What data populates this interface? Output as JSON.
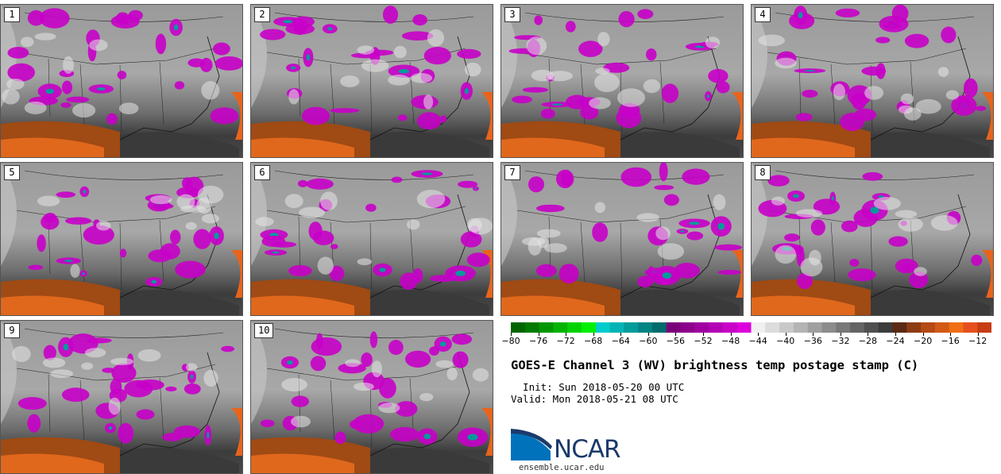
{
  "panels": [
    "1",
    "2",
    "3",
    "4",
    "5",
    "6",
    "7",
    "8",
    "9",
    "10"
  ],
  "colorbar": {
    "colors": [
      "#006400",
      "#007a00",
      "#009600",
      "#00b400",
      "#00d200",
      "#00f000",
      "#00cccc",
      "#00b4b4",
      "#009c9c",
      "#008484",
      "#006c6c",
      "#7a007a",
      "#8c008c",
      "#a000a0",
      "#b400b4",
      "#c800c8",
      "#dc00dc",
      "#f0f0f0",
      "#dcdcdc",
      "#c8c8c8",
      "#b4b4b4",
      "#a0a0a0",
      "#8c8c8c",
      "#787878",
      "#646464",
      "#505050",
      "#3c3c3c",
      "#5a2a14",
      "#8c3c14",
      "#b44a14",
      "#d25a14",
      "#f06e14",
      "#e6501e",
      "#c83c14"
    ],
    "min": -80,
    "max": -10,
    "tick_values": [
      -80,
      -76,
      -72,
      -68,
      -64,
      -60,
      -56,
      -52,
      -48,
      -44,
      -40,
      -36,
      -32,
      -28,
      -24,
      -20,
      -16,
      -12
    ],
    "tick_labels": [
      "−80",
      "−76",
      "−72",
      "−68",
      "−64",
      "−60",
      "−56",
      "−52",
      "−48",
      "−44",
      "−40",
      "−36",
      "−32",
      "−28",
      "−24",
      "−20",
      "−16",
      "−12"
    ]
  },
  "title": "GOES-E Channel 3 (WV) brightness temp postage stamp (C)",
  "init": "  Init: Sun 2018-05-20 00 UTC",
  "valid": "Valid: Mon 2018-05-21 08 UTC",
  "logo": {
    "text": "NCAR",
    "url": "ensemble.ucar.edu",
    "blue": "#0072bc",
    "navy": "#1b3a6b"
  }
}
